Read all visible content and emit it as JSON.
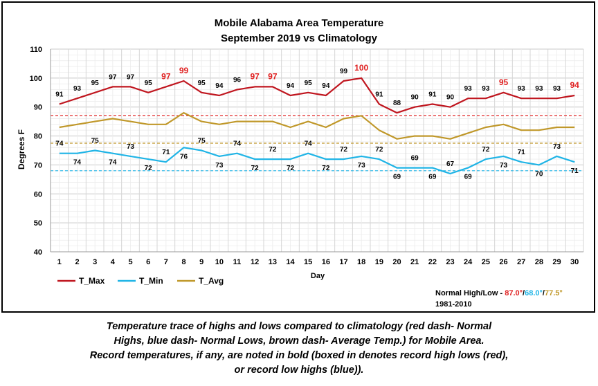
{
  "chart_data": {
    "type": "line",
    "title_line1": "Mobile Alabama Area Temperature",
    "title_line2": "September 2019 vs Climatology",
    "xlabel": "Day",
    "ylabel": "Degrees F",
    "ylim": [
      40,
      110
    ],
    "yticks": [
      40,
      50,
      60,
      70,
      80,
      90,
      100,
      110
    ],
    "grid": true,
    "x": [
      1,
      2,
      3,
      4,
      5,
      6,
      7,
      8,
      9,
      10,
      11,
      12,
      13,
      14,
      15,
      16,
      17,
      18,
      19,
      20,
      21,
      22,
      23,
      24,
      25,
      26,
      27,
      28,
      29,
      30
    ],
    "x_labels": [
      "1",
      "2",
      "3",
      "4",
      "5",
      "6",
      "7",
      "8",
      "9",
      "10",
      "11",
      "12",
      "13",
      "14",
      "15",
      "16",
      "17",
      "18",
      "19",
      "20",
      "21",
      "22",
      "23",
      "24",
      "25",
      "26",
      "27",
      "28",
      "29",
      "30"
    ],
    "series": [
      {
        "name": "T_Max",
        "color": "#c0161f",
        "values": [
          91,
          93,
          95,
          97,
          97,
          95,
          97,
          99,
          95,
          94,
          96,
          97,
          97,
          94,
          95,
          94,
          99,
          100,
          91,
          88,
          90,
          91,
          90,
          93,
          93,
          95,
          93,
          93,
          93,
          94
        ],
        "labels": [
          "91",
          "93",
          "95",
          "97",
          "97",
          "95",
          "97",
          "99",
          "95",
          "94",
          "96",
          "97",
          "97",
          "94",
          "95",
          "94",
          "99",
          "100",
          "91",
          "88",
          "90",
          "91",
          "90",
          "93",
          "93",
          "95",
          "93",
          "93",
          "93",
          "94"
        ],
        "record_days": [
          7,
          8,
          12,
          13,
          18,
          26,
          30
        ]
      },
      {
        "name": "T_Min",
        "color": "#1fb4e6",
        "values": [
          74,
          74,
          75,
          74,
          73,
          72,
          71,
          76,
          75,
          73,
          74,
          72,
          72,
          72,
          74,
          72,
          72,
          73,
          72,
          69,
          69,
          69,
          67,
          69,
          72,
          73,
          71,
          70,
          73,
          71
        ],
        "labels": [
          "74",
          "74",
          "75",
          "74",
          "73",
          "72",
          "71",
          "76",
          "75",
          "73",
          "74",
          "72",
          "72",
          "72",
          "74",
          "72",
          "72",
          "73",
          "72",
          "69",
          "69",
          "69",
          "67",
          "69",
          "72",
          "73",
          "71",
          "70",
          "73",
          "71"
        ]
      },
      {
        "name": "T_Avg",
        "color": "#c0982a",
        "values": [
          83,
          84,
          85,
          86,
          85,
          84,
          84,
          88,
          85,
          84,
          85,
          85,
          85,
          83,
          85,
          83,
          86,
          87,
          82,
          79,
          80,
          80,
          79,
          81,
          83,
          84,
          82,
          82,
          83,
          83
        ]
      }
    ],
    "normals": {
      "high": 87.0,
      "low": 68.0,
      "avg": 77.5,
      "high_color": "#e02020",
      "low_color": "#1fb4e6",
      "avg_color": "#c0982a",
      "label_prefix": "Normal High/Low - ",
      "high_text": "87.0°",
      "low_text": "68.0°",
      "avg_text": "77.5°",
      "sep": "/",
      "period": "1981-2010"
    },
    "legend_position": "bottom-left"
  },
  "caption": {
    "line1": "Temperature trace of highs and lows compared to climatology (red dash- Normal",
    "line2": "Highs, blue dash- Normal Lows, brown dash- Average Temp.) for Mobile Area.",
    "line3": "Record temperatures, if any, are noted in bold (boxed in denotes record high lows (red),",
    "line4": "or record low highs (blue))."
  }
}
